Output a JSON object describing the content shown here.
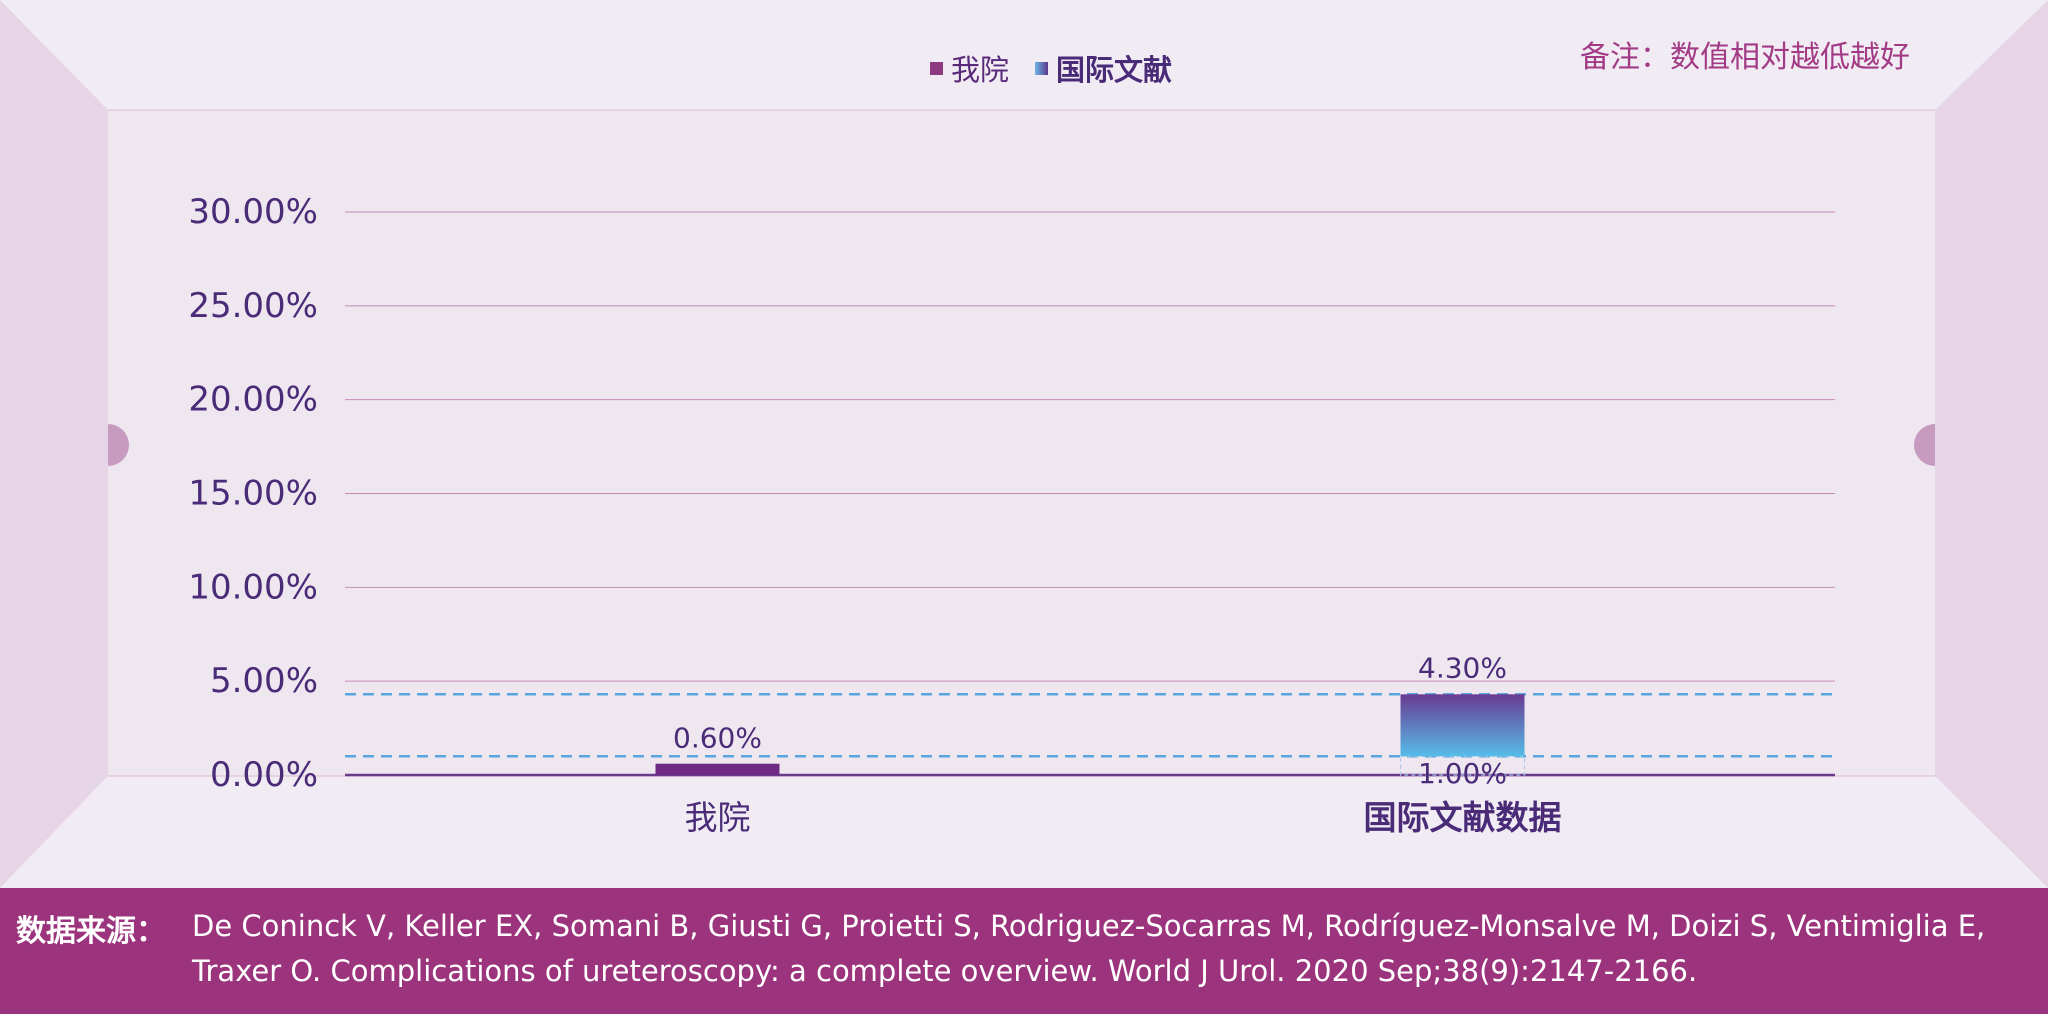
{
  "legend": {
    "ours": "我院",
    "intl": "国际文献"
  },
  "note": "备注：数值相对越低越好",
  "footer": {
    "label": "数据来源：",
    "citation": "De Coninck V, Keller EX, Somani B, Giusti G, Proietti S, Rodriguez-Socarras M, Rodríguez-Monsalve M, Doizi S, Ventimiglia E, Traxer O. Complications of ureteroscopy: a complete overview. World J Urol. 2020 Sep;38(9):2147-2166."
  },
  "colors": {
    "axis_text": "#4a2b78",
    "grid": "#c48ab4",
    "ours_bar": "#6e2a82",
    "intl_bar_top": "#6a3a92",
    "intl_bar_bottom": "#55bde8",
    "dash": "#5aa6df",
    "footer_bg": "#9b347c"
  },
  "chart_data": {
    "type": "bar",
    "categories": [
      "我院",
      "国际文献数据"
    ],
    "series": [
      {
        "name": "我院",
        "values": [
          0.6,
          null
        ],
        "labels": [
          "0.60%",
          null
        ]
      },
      {
        "name": "国际文献",
        "values": [
          null,
          [
            1.0,
            4.3
          ]
        ],
        "labels": [
          null,
          [
            "1.00%",
            "4.30%"
          ]
        ]
      }
    ],
    "reference_lines": [
      1.0,
      4.3
    ],
    "yticks": [
      "0.00%",
      "5.00%",
      "10.00%",
      "15.00%",
      "20.00%",
      "25.00%",
      "30.00%"
    ],
    "ylim": [
      0,
      30
    ],
    "grid": true,
    "legend_position": "top-center"
  }
}
